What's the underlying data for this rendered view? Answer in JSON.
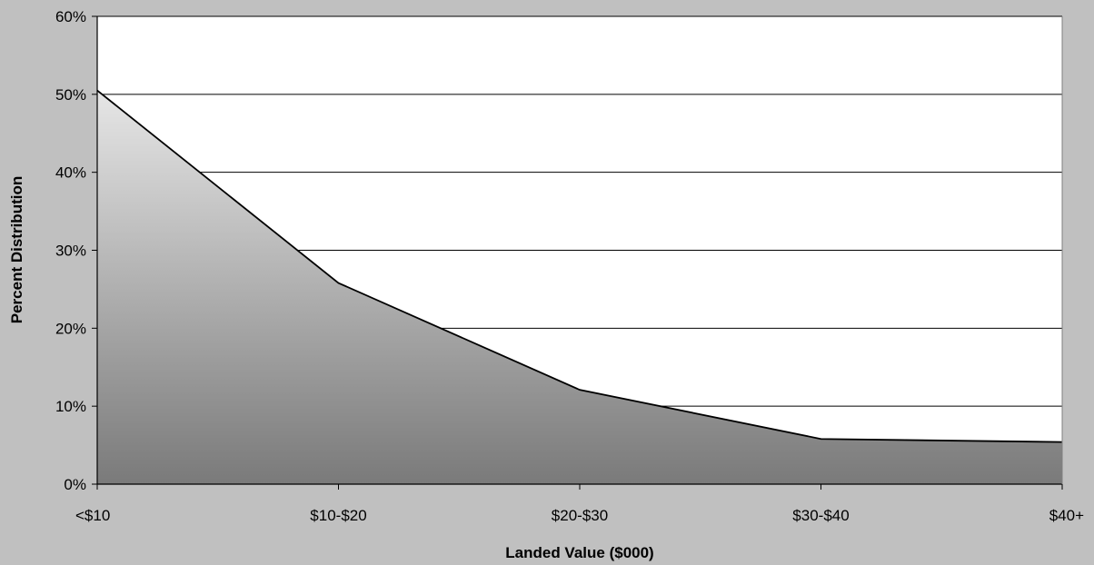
{
  "chart_data": {
    "type": "area",
    "categories": [
      "<$10",
      "$10-$20",
      "$20-$30",
      "$30-$40",
      "$40+"
    ],
    "series": [
      {
        "values": [
          50.5,
          25.8,
          12.1,
          5.8,
          5.4
        ]
      }
    ],
    "xlabel": "Landed Value ($000)",
    "ylabel": "Percent Distribution",
    "ylim": [
      0,
      60
    ],
    "yticks": [
      0,
      10,
      20,
      30,
      40,
      50,
      60
    ],
    "ytick_labels": [
      "0%",
      "10%",
      "20%",
      "30%",
      "40%",
      "50%",
      "60%"
    ],
    "grid": true,
    "legend": "none",
    "colors": {
      "background": "#c0c0c0",
      "plot_area": "#ffffff",
      "fill_top": "#e6e6e6",
      "fill_bottom": "#7a7a7a",
      "line": "#000000",
      "gridline": "#000000"
    }
  }
}
